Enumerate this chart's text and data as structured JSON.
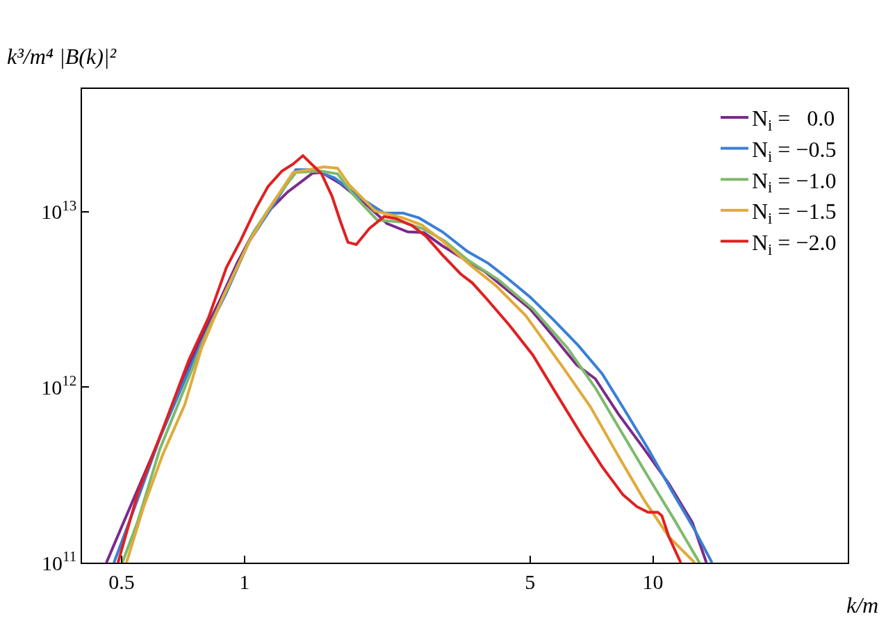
{
  "chart_data": {
    "type": "line",
    "xlabel": "k/m",
    "ylabel": "k³/m⁴ |B(k)|²",
    "log": "xy",
    "legend": "top right",
    "marker": "none",
    "line_style": "solid",
    "xlim": [
      0.4,
      30
    ],
    "xticks": [
      0.5,
      1,
      5,
      10
    ],
    "ylim": [
      100000000000.0,
      50000000000000.0
    ],
    "yticks": [
      {
        "value": 100000000000.0,
        "label": "10$^{11}$"
      },
      {
        "value": 1000000000000.0,
        "label": "10$^{12}$"
      },
      {
        "value": 10000000000000.0,
        "label": "10$^{13}$"
      }
    ],
    "series": [
      {
        "name": "N$_{i}$ =   0.0",
        "color": "#7b2a8c",
        "x": [
          0.459,
          0.506,
          0.62,
          0.692,
          0.772,
          0.875,
          0.962,
          1.056,
          1.16,
          1.275,
          1.468,
          1.544,
          1.717,
          2.007,
          2.232,
          2.51,
          2.747,
          3.053,
          3.38,
          3.861,
          4.395,
          5.0,
          5.713,
          6.501,
          7.225,
          8.222,
          9.504,
          10.94,
          12.5,
          13.52
        ],
        "values": [
          100000000000.0,
          170300000000.0,
          511900000000.0,
          990800000000.0,
          1782000000000.0,
          3206000000000.0,
          5166000000000.0,
          7733000000000.0,
          10370000000000.0,
          12930000000000.0,
          16560000000000.0,
          16710000000000.0,
          14430000000000.0,
          10760000000000.0,
          8556000000000.0,
          7666000000000.0,
          7596000000000.0,
          6379000000000.0,
          5508000000000.0,
          4585000000000.0,
          3580000000000.0,
          2794000000000.0,
          1936000000000.0,
          1341000000000.0,
          1116000000000.0,
          705700000000.0,
          446000000000.0,
          282000000000.0,
          168700000000.0,
          100000000000.0
        ]
      },
      {
        "name": "N$_{i}$ = −0.5",
        "color": "#3a7fd5",
        "x": [
          0.479,
          0.547,
          0.62,
          0.725,
          0.809,
          0.903,
          1.024,
          1.16,
          1.336,
          1.468,
          1.664,
          1.916,
          2.197,
          2.442,
          2.673,
          3.053,
          3.516,
          3.953,
          4.395,
          5.0,
          5.713,
          6.577,
          7.515,
          8.551,
          9.73,
          11.11,
          12.65,
          13.95
        ],
        "values": [
          100000000000.0,
          228400000000.0,
          511900000000.0,
          1190000000000.0,
          2064000000000.0,
          3450000000000.0,
          6678000000000.0,
          10370000000000.0,
          17340000000000.0,
          17340000000000.0,
          15530000000000.0,
          12010000000000.0,
          9818000000000.0,
          9818000000000.0,
          9208000000000.0,
          7666000000000.0,
          5928000000000.0,
          5073000000000.0,
          4183000000000.0,
          3265000000000.0,
          2413000000000.0,
          1718000000000.0,
          1190000000000.0,
          732000000000.0,
          446000000000.0,
          257300000000.0,
          153900000000.0,
          100000000000.0
        ]
      },
      {
        "name": "N$_{i}$ = −1.0",
        "color": "#7dba6b",
        "x": [
          0.502,
          0.547,
          0.62,
          0.714,
          0.809,
          0.918,
          1.056,
          1.197,
          1.336,
          1.538,
          1.69,
          1.835,
          2.113,
          2.442,
          2.747,
          3.089,
          3.516,
          4.176,
          5.079,
          6.177,
          7.225,
          8.45,
          9.73,
          11.24,
          13.0
        ],
        "values": [
          100000000000.0,
          170300000000.0,
          441900000000.0,
          990800000000.0,
          2064000000000.0,
          3852000000000.0,
          7733000000000.0,
          12010000000000.0,
          16710000000000.0,
          17020000000000.0,
          16410000000000.0,
          12690000000000.0,
          8957000000000.0,
          8714000000000.0,
          7950000000000.0,
          6802000000000.0,
          5310000000000.0,
          4107000000000.0,
          2794000000000.0,
          1671000000000.0,
          990800000000.0,
          536000000000.0,
          309000000000.0,
          178200000000.0,
          100000000000.0
        ]
      },
      {
        "name": "N$_{i}$ = −1.5",
        "color": "#e0aa3a",
        "x": [
          0.514,
          0.565,
          0.63,
          0.714,
          0.784,
          0.889,
          1.024,
          1.16,
          1.315,
          1.563,
          1.69,
          1.806,
          2.088,
          2.442,
          2.715,
          3.053,
          3.613,
          4.111,
          4.885,
          6.01,
          7.029,
          8.222,
          9.504,
          10.94,
          12.65
        ],
        "values": [
          100000000000.0,
          204600000000.0,
          410700000000.0,
          795000000000.0,
          1656000000000.0,
          3326000000000.0,
          6678000000000.0,
          10760000000000.0,
          16710000000000.0,
          17990000000000.0,
          17660000000000.0,
          14170000000000.0,
          10090000000000.0,
          9208000000000.0,
          8400000000000.0,
          6802000000000.0,
          4845000000000.0,
          3817000000000.0,
          2549000000000.0,
          1305000000000.0,
          773300000000.0,
          407000000000.0,
          228400000000.0,
          140400000000.0,
          100000000000.0
        ]
      },
      {
        "name": "N$_{i}$ = −2.0",
        "color": "#e02020",
        "x": [
          0.49,
          0.547,
          0.63,
          0.731,
          0.816,
          0.903,
          0.977,
          1.065,
          1.142,
          1.235,
          1.315,
          1.39,
          1.544,
          1.638,
          1.717,
          1.792,
          1.878,
          2.023,
          2.197,
          2.349,
          2.57,
          2.779,
          3.053,
          3.38,
          3.613,
          3.907,
          4.446,
          5.079,
          5.781,
          6.681,
          7.515,
          8.45,
          9.139,
          9.73,
          10.28,
          10.52,
          10.94,
          11.7
        ],
        "values": [
          100000000000.0,
          245800000000.0,
          571500000000.0,
          1430000000000.0,
          2480000000000.0,
          4801000000000.0,
          6802000000000.0,
          10370000000000.0,
          13910000000000.0,
          17020000000000.0,
          18660000000000.0,
          20830000000000.0,
          16410000000000.0,
          12230000000000.0,
          8794000000000.0,
          6678000000000.0,
          6496000000000.0,
          8023000000000.0,
          9378000000000.0,
          9124000000000.0,
          8323000000000.0,
          7254000000000.0,
          5662000000000.0,
          4419000000000.0,
          3923000000000.0,
          3206000000000.0,
          2262000000000.0,
          1525000000000.0,
          929300000000.0,
          536000000000.0,
          351400000000.0,
          243500000000.0,
          208400000000.0,
          193600000000.0,
          193600000000.0,
          184900000000.0,
          140400000000.0,
          100000000000.0
        ]
      }
    ]
  }
}
